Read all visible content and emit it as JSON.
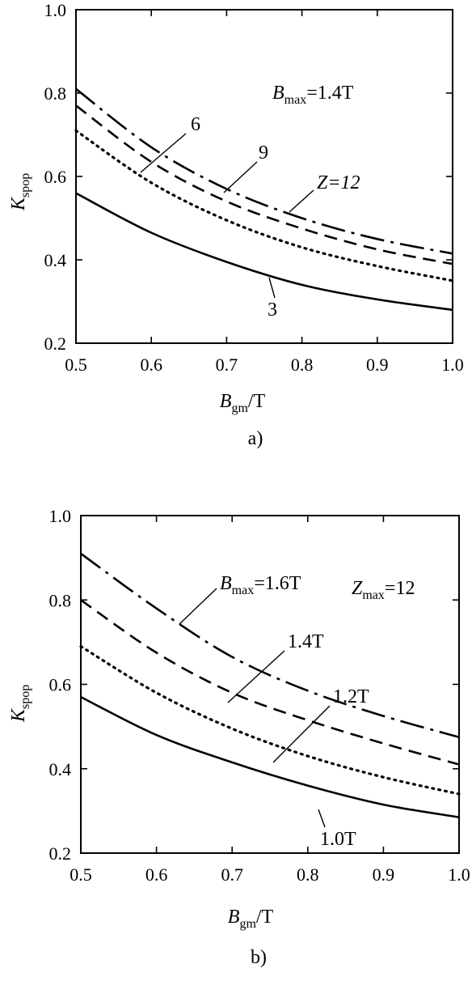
{
  "chart_data": [
    {
      "type": "line",
      "panel_label": "a)",
      "title": "",
      "xlabel": {
        "main": "B",
        "sub": "gm",
        "suffix": "/T"
      },
      "ylabel": {
        "main": "K",
        "sub": "spop"
      },
      "xlim": [
        0.5,
        1.0
      ],
      "ylim": [
        0.2,
        1.0
      ],
      "xticks": [
        "0.5",
        "0.6",
        "0.7",
        "0.8",
        "0.9",
        "1.0"
      ],
      "yticks": [
        "0.2",
        "0.4",
        "0.6",
        "0.8",
        "1.0"
      ],
      "grid": false,
      "header": {
        "main": "B",
        "sub": "max",
        "suffix": "=1.4T"
      },
      "x": [
        0.5,
        0.6,
        0.7,
        0.8,
        0.9,
        1.0
      ],
      "series": [
        {
          "label": "Z=12",
          "style": "dashdot",
          "values": [
            0.81,
            0.67,
            0.57,
            0.5,
            0.45,
            0.415
          ]
        },
        {
          "label": "9",
          "style": "dashed",
          "values": [
            0.77,
            0.635,
            0.54,
            0.475,
            0.425,
            0.39
          ]
        },
        {
          "label": "6",
          "style": "dotted",
          "values": [
            0.71,
            0.585,
            0.495,
            0.43,
            0.385,
            0.35
          ]
        },
        {
          "label": "3",
          "style": "solid",
          "values": [
            0.56,
            0.465,
            0.395,
            0.34,
            0.305,
            0.28
          ]
        }
      ]
    },
    {
      "type": "line",
      "panel_label": "b)",
      "title": "",
      "xlabel": {
        "main": "B",
        "sub": "gm",
        "suffix": "/T"
      },
      "ylabel": {
        "main": "K",
        "sub": "spop"
      },
      "xlim": [
        0.5,
        1.0
      ],
      "ylim": [
        0.2,
        1.0
      ],
      "xticks": [
        "0.5",
        "0.6",
        "0.7",
        "0.8",
        "0.9",
        "1.0"
      ],
      "yticks": [
        "0.2",
        "0.4",
        "0.6",
        "0.8",
        "1.0"
      ],
      "grid": false,
      "header": {
        "main": "Z",
        "sub": "max",
        "suffix": "=12"
      },
      "x": [
        0.5,
        0.6,
        0.7,
        0.8,
        0.9,
        1.0
      ],
      "series": [
        {
          "label": "B",
          "label_sub": "max",
          "label_suffix": "=1.6T",
          "style": "dashdot",
          "values": [
            0.91,
            0.78,
            0.665,
            0.585,
            0.525,
            0.475
          ]
        },
        {
          "label": "1.4T",
          "style": "dashed",
          "values": [
            0.8,
            0.675,
            0.58,
            0.515,
            0.46,
            0.41
          ]
        },
        {
          "label": "1.2T",
          "style": "dotted",
          "values": [
            0.69,
            0.58,
            0.495,
            0.43,
            0.38,
            0.34
          ]
        },
        {
          "label": "1.0T",
          "style": "solid",
          "values": [
            0.57,
            0.48,
            0.415,
            0.36,
            0.315,
            0.285
          ]
        }
      ]
    }
  ]
}
